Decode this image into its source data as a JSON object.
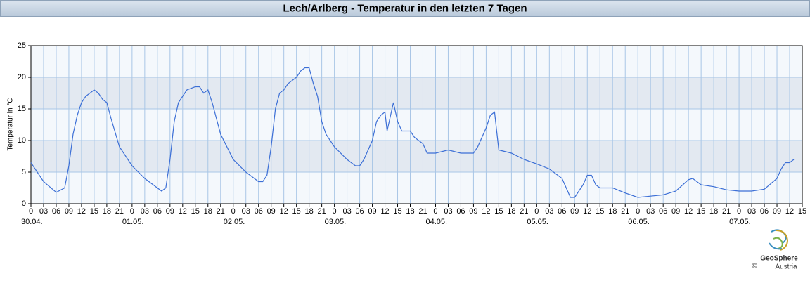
{
  "chart_data": {
    "type": "line",
    "title": "Lech/Arlberg - Temperatur in den letzten 7 Tagen",
    "y_label": "Temperatur in °C",
    "x": [
      0,
      3,
      6,
      8,
      9,
      10,
      11,
      12,
      13,
      15,
      16,
      17,
      18,
      19,
      21,
      24,
      27,
      30,
      31,
      32,
      33,
      34,
      35,
      36,
      37,
      39,
      40,
      41,
      42,
      43,
      45,
      48,
      51,
      54,
      55,
      56,
      57,
      58,
      59,
      60,
      61,
      63,
      64,
      65,
      66,
      67,
      68,
      69,
      70,
      72,
      75,
      77,
      78,
      79,
      81,
      82,
      83,
      84,
      84.5,
      85,
      86,
      87,
      88,
      90,
      91,
      93,
      94,
      96,
      99,
      102,
      105,
      106,
      108,
      109,
      110,
      111,
      114,
      117,
      120,
      123,
      126,
      127,
      128,
      129,
      130,
      131,
      132,
      133,
      134,
      135,
      138,
      141,
      144,
      147,
      150,
      153,
      156,
      157,
      159,
      162,
      165,
      168,
      171,
      174,
      177,
      178,
      179,
      180,
      181
    ],
    "series": [
      {
        "name": "Temperatur",
        "color": "#3c6fd6",
        "values": [
          6.5,
          3.5,
          1.8,
          2.5,
          6,
          11,
          14,
          16,
          17,
          18,
          17.5,
          16.5,
          16,
          13.5,
          9,
          6,
          4,
          2.5,
          2,
          2.5,
          7,
          13,
          16,
          17,
          18,
          18.5,
          18.5,
          17.5,
          18,
          16,
          11,
          7,
          5,
          3.5,
          3.5,
          4.5,
          9,
          15,
          17.5,
          18,
          19,
          20,
          21,
          21.5,
          21.5,
          19,
          17,
          13,
          11,
          9,
          7,
          6,
          6,
          7,
          10,
          13,
          14,
          14.5,
          11.5,
          13,
          16,
          13,
          11.5,
          11.5,
          10.5,
          9.5,
          8,
          8,
          8.5,
          8,
          8,
          9,
          12,
          14,
          14.5,
          8.5,
          8,
          7,
          6.3,
          5.5,
          4,
          2.5,
          1,
          1,
          2,
          3,
          4.5,
          4.5,
          3,
          2.5,
          2.5,
          1.7,
          1,
          1.2,
          1.4,
          2,
          3.8,
          4,
          3,
          2.7,
          2.2,
          2,
          2,
          2.3,
          4,
          5.5,
          6.5,
          6.5,
          7
        ]
      }
    ],
    "xlim": [
      0,
      183
    ],
    "xticks": [
      0,
      {
        "value": 3,
        "label": "03"
      },
      {
        "value": 6,
        "label": "06"
      },
      {
        "value": 9,
        "label": "09"
      },
      {
        "value": 12,
        "label": "12"
      },
      {
        "value": 15,
        "label": "15"
      },
      {
        "value": 18,
        "label": "18"
      },
      {
        "value": 21,
        "label": "21"
      },
      {
        "value": 24,
        "label": "0"
      },
      {
        "value": 27,
        "label": "03"
      },
      {
        "value": 30,
        "label": "06"
      },
      {
        "value": 33,
        "label": "09"
      },
      {
        "value": 36,
        "label": "12"
      },
      {
        "value": 39,
        "label": "15"
      },
      {
        "value": 42,
        "label": "18"
      },
      {
        "value": 45,
        "label": "21"
      },
      {
        "value": 48,
        "label": "0"
      },
      {
        "value": 51,
        "label": "03"
      },
      {
        "value": 54,
        "label": "06"
      },
      {
        "value": 57,
        "label": "09"
      },
      {
        "value": 60,
        "label": "12"
      },
      {
        "value": 63,
        "label": "15"
      },
      {
        "value": 66,
        "label": "18"
      },
      {
        "value": 69,
        "label": "21"
      },
      {
        "value": 72,
        "label": "0"
      },
      {
        "value": 75,
        "label": "03"
      },
      {
        "value": 78,
        "label": "06"
      },
      {
        "value": 81,
        "label": "09"
      },
      {
        "value": 84,
        "label": "12"
      },
      {
        "value": 87,
        "label": "15"
      },
      {
        "value": 90,
        "label": "18"
      },
      {
        "value": 93,
        "label": "21"
      },
      {
        "value": 96,
        "label": "0"
      },
      {
        "value": 99,
        "label": "03"
      },
      {
        "value": 102,
        "label": "06"
      },
      {
        "value": 105,
        "label": "09"
      },
      {
        "value": 108,
        "label": "12"
      },
      {
        "value": 111,
        "label": "15"
      },
      {
        "value": 114,
        "label": "18"
      },
      {
        "value": 117,
        "label": "21"
      },
      {
        "value": 120,
        "label": "0"
      },
      {
        "value": 123,
        "label": "03"
      },
      {
        "value": 126,
        "label": "06"
      },
      {
        "value": 129,
        "label": "09"
      },
      {
        "value": 132,
        "label": "12"
      },
      {
        "value": 135,
        "label": "15"
      },
      {
        "value": 138,
        "label": "18"
      },
      {
        "value": 141,
        "label": "21"
      },
      {
        "value": 144,
        "label": "0"
      },
      {
        "value": 147,
        "label": "03"
      },
      {
        "value": 150,
        "label": "06"
      },
      {
        "value": 153,
        "label": "09"
      },
      {
        "value": 156,
        "label": "12"
      },
      {
        "value": 159,
        "label": "15"
      },
      {
        "value": 162,
        "label": "18"
      },
      {
        "value": 165,
        "label": "21"
      },
      {
        "value": 168,
        "label": "0"
      },
      {
        "value": 171,
        "label": "03"
      },
      {
        "value": 174,
        "label": "06"
      },
      {
        "value": 177,
        "label": "09"
      },
      {
        "value": 180,
        "label": "12"
      },
      {
        "value": 183,
        "label": "15"
      }
    ],
    "day_labels": [
      {
        "value": 0,
        "label": "30.04."
      },
      {
        "value": 24,
        "label": "01.05."
      },
      {
        "value": 48,
        "label": "02.05."
      },
      {
        "value": 72,
        "label": "03.05."
      },
      {
        "value": 96,
        "label": "04.05."
      },
      {
        "value": 120,
        "label": "05.05."
      },
      {
        "value": 144,
        "label": "06.05."
      },
      {
        "value": 168,
        "label": "07.05."
      }
    ],
    "ylim": [
      0,
      25
    ],
    "yticks": [
      0,
      5,
      10,
      15,
      20,
      25
    ],
    "grid": true
  },
  "branding": {
    "name": "GeoSphere",
    "sub": "Austria",
    "copyright": "©"
  }
}
